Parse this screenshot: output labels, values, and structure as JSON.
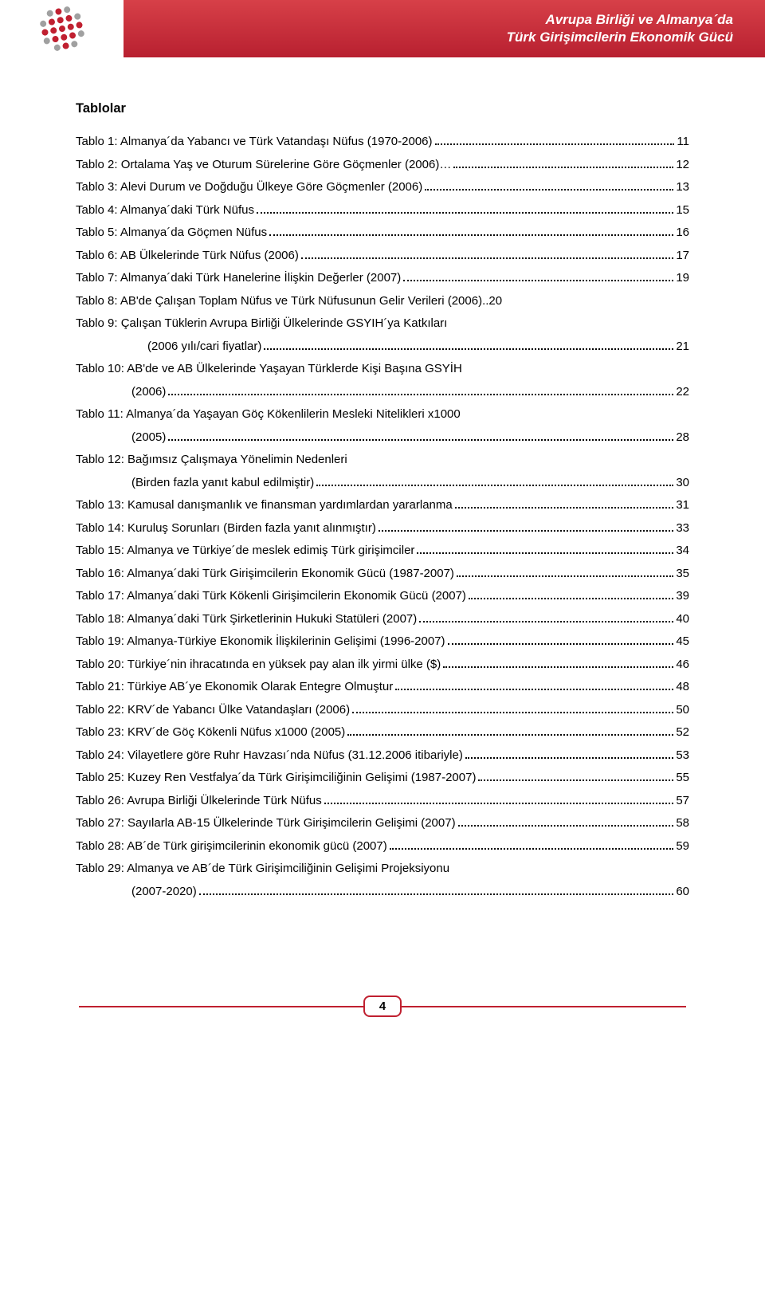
{
  "header": {
    "title_line1": "Avrupa Birliği ve Almanya´da",
    "title_line2": "Türk Girişimcilerin Ekonomik Gücü",
    "bg_gradient_top": "#d74048",
    "bg_gradient_bottom": "#b82030",
    "logo": {
      "dot_color_red": "#c02030",
      "dot_color_gray": "#a0a0a0"
    }
  },
  "section_heading": "Tablolar",
  "toc": [
    {
      "label": "Tablo 1: Almanya´da Yabancı ve Türk Vatandaşı Nüfus (1970-2006)",
      "page": "11"
    },
    {
      "label": "Tablo 2: Ortalama Yaş ve Oturum Sürelerine Göre Göçmenler (2006)…  ",
      "page": "12"
    },
    {
      "label": "Tablo 3: Alevi Durum ve Doğduğu Ülkeye Göre Göçmenler (2006)",
      "page": "13"
    },
    {
      "label": "Tablo 4: Almanya´daki Türk Nüfus",
      "page": "15"
    },
    {
      "label": "Tablo 5: Almanya´da Göçmen Nüfus",
      "page": "16"
    },
    {
      "label": "Tablo 6: AB Ülkelerinde Türk Nüfus (2006)",
      "page": "17"
    },
    {
      "label": "Tablo 7: Almanya´daki Türk Hanelerine İlişkin Değerler (2007)",
      "page": "19"
    },
    {
      "label": "Tablo 8: AB'de Çalışan Toplam Nüfus ve Türk Nüfusunun Gelir Verileri (2006)..20",
      "nodots": true
    },
    {
      "label": "Tablo 9: Çalışan Tüklerin Avrupa Birliği Ülkelerinde GSYIH´ya Katkıları",
      "nodots": true,
      "noline": true
    },
    {
      "label": "(2006 yılı/cari fiyatlar)",
      "page": "21",
      "indent": 2
    },
    {
      "label": "Tablo 10: AB'de ve AB Ülkelerinde Yaşayan Türklerde Kişi Başına GSYİH",
      "nodots": true,
      "noline": true
    },
    {
      "label": "(2006)",
      "page": "22",
      "indent": 1
    },
    {
      "label": "Tablo 11: Almanya´da Yaşayan Göç Kökenlilerin Mesleki Nitelikleri x1000",
      "nodots": true,
      "noline": true
    },
    {
      "label": "(2005)",
      "page": "28",
      "indent": 1
    },
    {
      "label": "Tablo 12: Bağımsız Çalışmaya Yönelimin Nedenleri",
      "nodots": true,
      "noline": true
    },
    {
      "label": "(Birden fazla yanıt kabul edilmiştir)",
      "page": "30",
      "indent": 1
    },
    {
      "label": "Tablo 13: Kamusal danışmanlık ve finansman yardımlardan yararlanma ",
      "page": "31"
    },
    {
      "label": "Tablo 14: Kuruluş Sorunları (Birden fazla yanıt alınmıştır)",
      "page": "33"
    },
    {
      "label": "Tablo 15: Almanya ve Türkiye´de meslek edimiş Türk girişimciler",
      "page": "34"
    },
    {
      "label": "Tablo 16: Almanya´daki Türk Girişimcilerin Ekonomik Gücü (1987-2007) ",
      "page": "35"
    },
    {
      "label": "Tablo 17: Almanya´daki Türk Kökenli Girişimcilerin Ekonomik Gücü (2007)",
      "page": "39"
    },
    {
      "label": "Tablo 18: Almanya´daki Türk Şirketlerinin Hukuki Statüleri (2007)",
      "page": "40"
    },
    {
      "label": "Tablo 19: Almanya-Türkiye Ekonomik İlişkilerinin Gelişimi (1996-2007)",
      "page": "45"
    },
    {
      "label": "Tablo 20: Türkiye´nin ihracatında en yüksek pay alan ilk yirmi ülke ($)",
      "page": "46"
    },
    {
      "label": "Tablo 21: Türkiye AB´ye Ekonomik Olarak Entegre Olmuştur",
      "page": "48"
    },
    {
      "label": "Tablo 22: KRV´de Yabancı Ülke Vatandaşları (2006)",
      "page": "50"
    },
    {
      "label": "Tablo 23: KRV´de Göç Kökenli Nüfus x1000 (2005)",
      "page": "52"
    },
    {
      "label": "Tablo 24: Vilayetlere göre Ruhr Havzası´nda Nüfus (31.12.2006 itibariyle) ",
      "page": "53"
    },
    {
      "label": "Tablo 25: Kuzey Ren Vestfalya´da Türk Girişimciliğinin Gelişimi (1987-2007) ",
      "page": "55"
    },
    {
      "label": "Tablo 26: Avrupa Birliği Ülkelerinde Türk Nüfus",
      "page": "57"
    },
    {
      "label": "Tablo 27: Sayılarla AB-15 Ülkelerinde Türk Girişimcilerin Gelişimi (2007)",
      "page": "58"
    },
    {
      "label": "Tablo 28: AB´de Türk girişimcilerinin ekonomik gücü (2007)",
      "page": "59"
    },
    {
      "label": "Tablo 29: Almanya ve AB´de Türk Girişimciliğinin Gelişimi Projeksiyonu",
      "nodots": true,
      "noline": true
    },
    {
      "label": "(2007-2020)",
      "page": "60",
      "indent": 1
    }
  ],
  "footer": {
    "page_number": "4",
    "accent_color": "#c02030"
  },
  "colors": {
    "text": "#000000",
    "background": "#ffffff"
  },
  "typography": {
    "body_font": "Verdana",
    "body_size_pt": 11,
    "heading_size_pt": 12,
    "heading_weight": "bold"
  }
}
